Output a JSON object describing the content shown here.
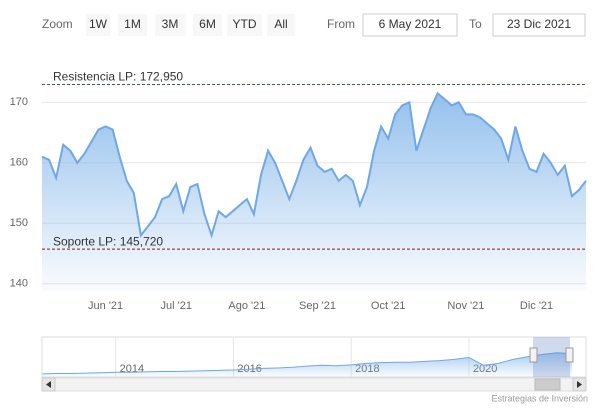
{
  "range_selector": {
    "zoom_label": "Zoom",
    "buttons": [
      "1W",
      "1M",
      "3M",
      "6M",
      "YTD",
      "All"
    ],
    "from_label": "From",
    "from": "6 May 2021",
    "to_label": "To",
    "to": "23 Dic 2021"
  },
  "credits": "Estrategias de Inversión",
  "chart_data": [
    {
      "type": "area",
      "color": "#6fa8e4",
      "categories": [
        null,
        null,
        null,
        null,
        null,
        null,
        null,
        null,
        null,
        "Jun '21",
        null,
        null,
        null,
        null,
        null,
        null,
        null,
        null,
        null,
        "Jul '21",
        null,
        null,
        null,
        null,
        null,
        null,
        null,
        null,
        null,
        "Ago '21",
        null,
        null,
        null,
        null,
        null,
        null,
        null,
        null,
        null,
        "Sep '21",
        null,
        null,
        null,
        null,
        null,
        null,
        null,
        null,
        null,
        "Oct '21",
        null,
        null,
        null,
        null,
        null,
        null,
        null,
        null,
        null,
        null,
        "Nov '21",
        null,
        null,
        null,
        null,
        null,
        null,
        null,
        null,
        null,
        "Dic '21",
        null,
        null,
        null,
        null,
        null,
        null,
        null
      ],
      "values": [
        161,
        160.5,
        157.5,
        163,
        162,
        160,
        161.5,
        163.5,
        165.5,
        166,
        165.5,
        161,
        157,
        155,
        148,
        149.5,
        151,
        154,
        154.5,
        156.5,
        152,
        156,
        156.5,
        151.5,
        148,
        152,
        151,
        152,
        153,
        154,
        151.5,
        158,
        162,
        160,
        157,
        154,
        157,
        160.5,
        162.5,
        159.5,
        158.5,
        159,
        157,
        158,
        157,
        153,
        156,
        162,
        166,
        164,
        168,
        169.5,
        170,
        162,
        165.5,
        169,
        171.5,
        170.5,
        169.5,
        170,
        168,
        168,
        167.5,
        166.5,
        165.5,
        164,
        160.5,
        166,
        162,
        159,
        158.5,
        161.5,
        160,
        158,
        159.5,
        154.5,
        155.5,
        157
      ],
      "ylim": [
        138.8,
        177
      ],
      "yticks": [
        140,
        150,
        160,
        170
      ],
      "grid": true,
      "plot_lines": [
        {
          "value": 172.95,
          "label": "Resistencia LP: 172,950",
          "color": "#2e6b2e"
        },
        {
          "value": 145.72,
          "label": "Soporte LP: 145,720",
          "color": "#8b1a1a"
        }
      ]
    },
    {
      "type": "area",
      "color": "#6fa8e4",
      "categories": [
        null,
        null,
        null,
        null,
        null,
        "2014",
        null,
        null,
        null,
        null,
        null,
        null,
        null,
        "2016",
        null,
        null,
        null,
        null,
        null,
        null,
        null,
        "2018",
        null,
        null,
        null,
        null,
        null,
        null,
        null,
        "2020",
        null,
        null,
        null,
        null,
        null,
        null,
        null
      ],
      "values": [
        8,
        9,
        9,
        10,
        11,
        12,
        12,
        13,
        14,
        14,
        15,
        16,
        17,
        18,
        20,
        22,
        23,
        25,
        28,
        30,
        29,
        31,
        35,
        37,
        38,
        38,
        40,
        42,
        45,
        50,
        30,
        35,
        45,
        52,
        58,
        62,
        60
      ],
      "ylim": [
        0,
        100
      ]
    }
  ]
}
